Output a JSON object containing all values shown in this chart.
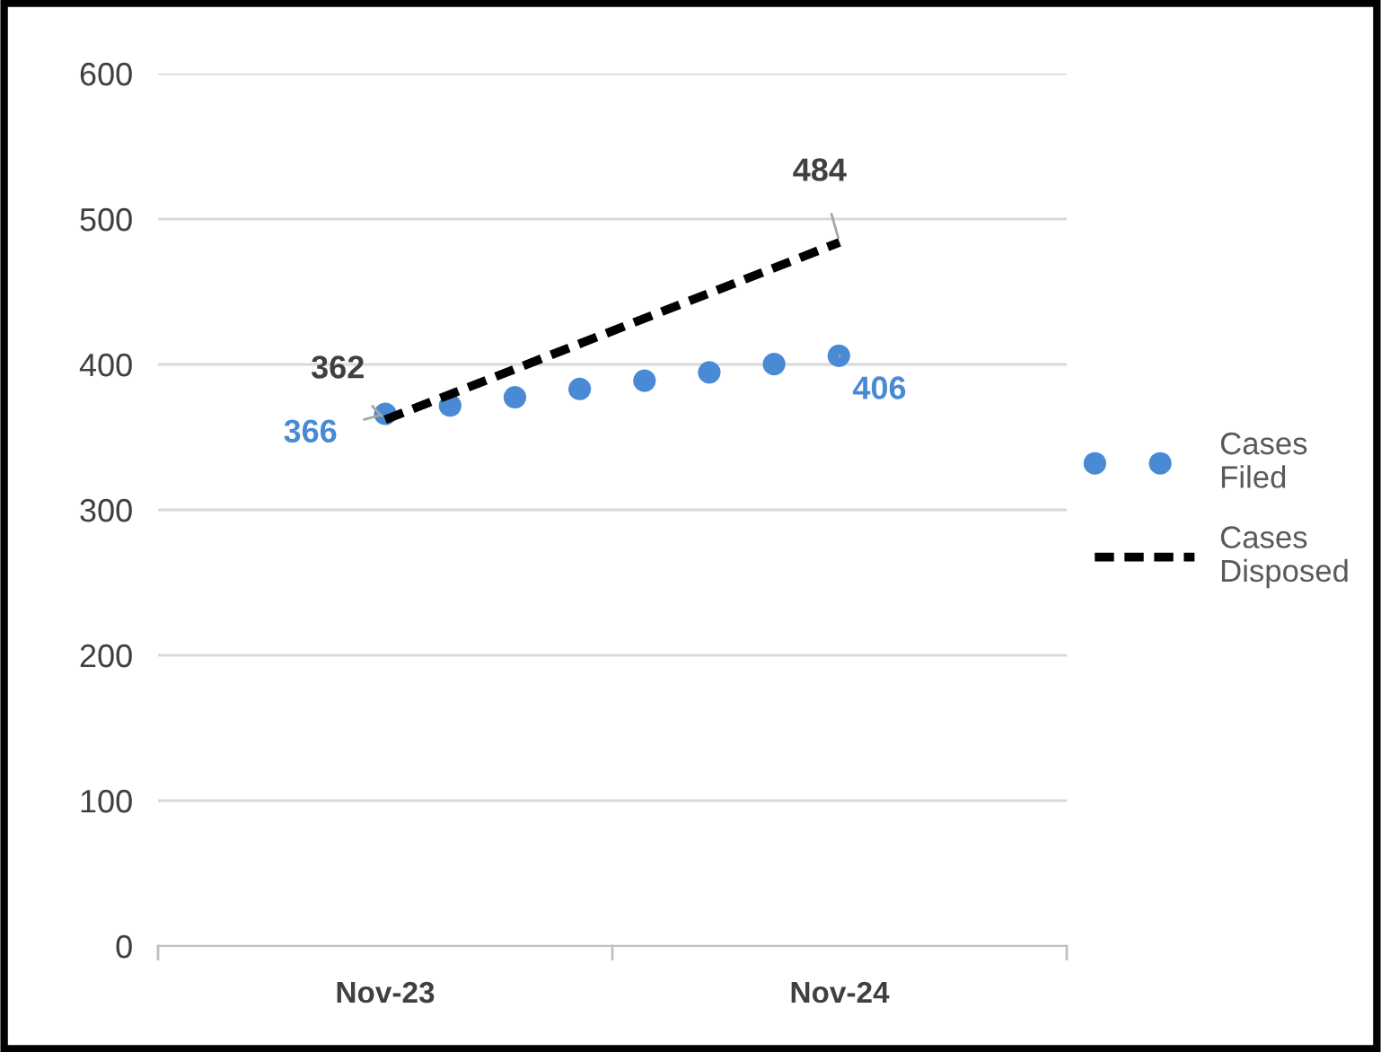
{
  "chart_data": {
    "type": "line",
    "categories": [
      "Nov-23",
      "Nov-24"
    ],
    "series": [
      {
        "name": "Cases Filed",
        "color": "#4a8ad4",
        "values": [
          366,
          406
        ],
        "line_style": "dotted"
      },
      {
        "name": "Cases Disposed",
        "color": "#000000",
        "values": [
          362,
          484
        ],
        "line_style": "dashed"
      }
    ],
    "ylim": [
      0,
      600
    ],
    "yticks": [
      0,
      100,
      200,
      300,
      400,
      500,
      600
    ],
    "grid": "y",
    "legend": "right",
    "data_labels": true
  }
}
